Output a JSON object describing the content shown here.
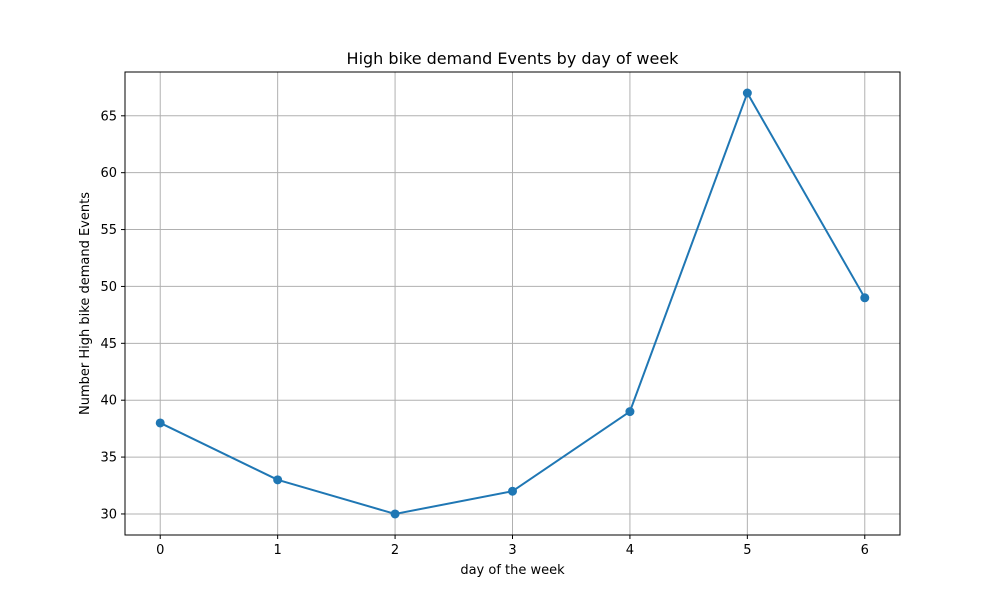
{
  "chart_data": {
    "type": "line",
    "title": "High bike demand Events by day of week",
    "xlabel": "day of the week",
    "ylabel": "Number High bike demand Events",
    "x": [
      0,
      1,
      2,
      3,
      4,
      5,
      6
    ],
    "values": [
      38,
      33,
      30,
      32,
      39,
      67,
      49
    ],
    "x_ticks": [
      "0",
      "1",
      "2",
      "3",
      "4",
      "5",
      "6"
    ],
    "y_ticks": [
      "30",
      "35",
      "40",
      "45",
      "50",
      "55",
      "60",
      "65"
    ],
    "xlim": [
      -0.3,
      6.3
    ],
    "ylim": [
      28.15,
      68.85
    ],
    "grid": true,
    "markers": true,
    "line_color": "#1f77b4",
    "grid_color": "#b0b0b0"
  }
}
